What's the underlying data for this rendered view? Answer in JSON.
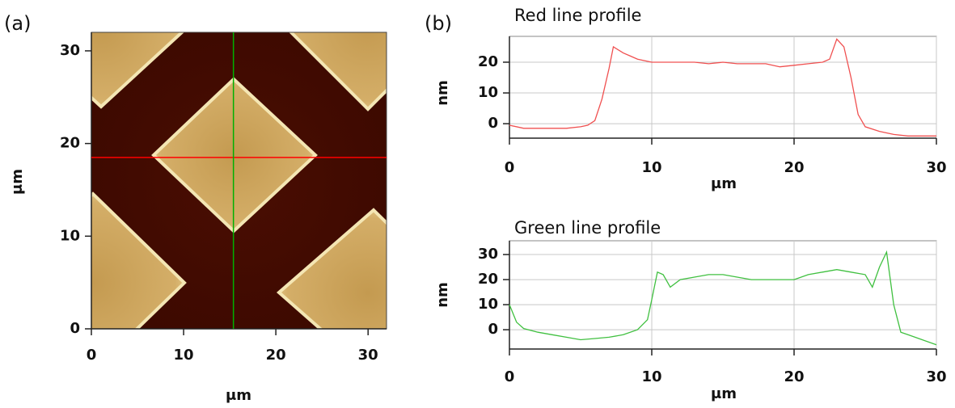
{
  "chart_data": [
    {
      "type": "image",
      "panel_label": "(a)",
      "xlabel": "μm",
      "ylabel": "μm",
      "xlim": [
        0,
        32
      ],
      "ylim": [
        0,
        32
      ],
      "xticks": [
        0,
        10,
        20,
        30
      ],
      "yticks": [
        0,
        10,
        20,
        30
      ],
      "lines": [
        {
          "color": "#ff0000",
          "y": 18.5
        },
        {
          "color": "#00b000",
          "x": 15.4
        }
      ]
    },
    {
      "type": "line",
      "panel_label": "(b)",
      "title": "Red line profile",
      "xlabel": "μm",
      "ylabel": "nm",
      "color": "#f05050",
      "grid": true,
      "xlim": [
        0,
        30
      ],
      "ylim": [
        -4.7,
        28.4
      ],
      "xticks": [
        0,
        10,
        20,
        30
      ],
      "yticks": [
        0,
        10,
        20
      ],
      "x": [
        0,
        1,
        2,
        3,
        4,
        5,
        5.5,
        6,
        6.5,
        7,
        7.3,
        8,
        8.5,
        9,
        10,
        11,
        12,
        13,
        14,
        15,
        16,
        17,
        18,
        19,
        20,
        21,
        22,
        22.5,
        23,
        23.5,
        24,
        24.5,
        25,
        26,
        27,
        28,
        29,
        30
      ],
      "values": [
        -0.5,
        -1.5,
        -1.5,
        -1.5,
        -1.5,
        -1,
        -0.5,
        1,
        8,
        18,
        25,
        23,
        22,
        21,
        20,
        20,
        20,
        20,
        19.5,
        20,
        19.5,
        19.5,
        19.5,
        18.5,
        19,
        19.5,
        20,
        21,
        27.5,
        25,
        15,
        3,
        -1,
        -2.5,
        -3.5,
        -4,
        -4,
        -4
      ]
    },
    {
      "type": "line",
      "title": "Green line profile",
      "xlabel": "μm",
      "ylabel": "nm",
      "color": "#40c040",
      "grid": true,
      "xlim": [
        0,
        30
      ],
      "ylim": [
        -7.7,
        35.5
      ],
      "xticks": [
        0,
        10,
        20,
        30
      ],
      "yticks": [
        0,
        10,
        20,
        30
      ],
      "x": [
        0,
        0.5,
        1,
        2,
        3,
        4,
        5,
        6,
        7,
        8,
        9,
        9.7,
        10,
        10.4,
        10.8,
        11.3,
        12,
        13,
        14,
        15,
        16,
        17,
        18,
        19,
        20,
        21,
        22,
        23,
        24,
        25,
        25.5,
        26,
        26.5,
        27,
        27.5,
        28,
        29,
        30
      ],
      "values": [
        10,
        3,
        0.5,
        -1,
        -2,
        -3,
        -4,
        -3.5,
        -3,
        -2,
        0,
        4,
        12,
        23,
        22,
        17,
        20,
        21,
        22,
        22,
        21,
        20,
        20,
        20,
        20,
        22,
        23,
        24,
        23,
        22,
        17,
        25,
        31,
        10,
        -1,
        -2,
        -4,
        -6
      ]
    }
  ]
}
